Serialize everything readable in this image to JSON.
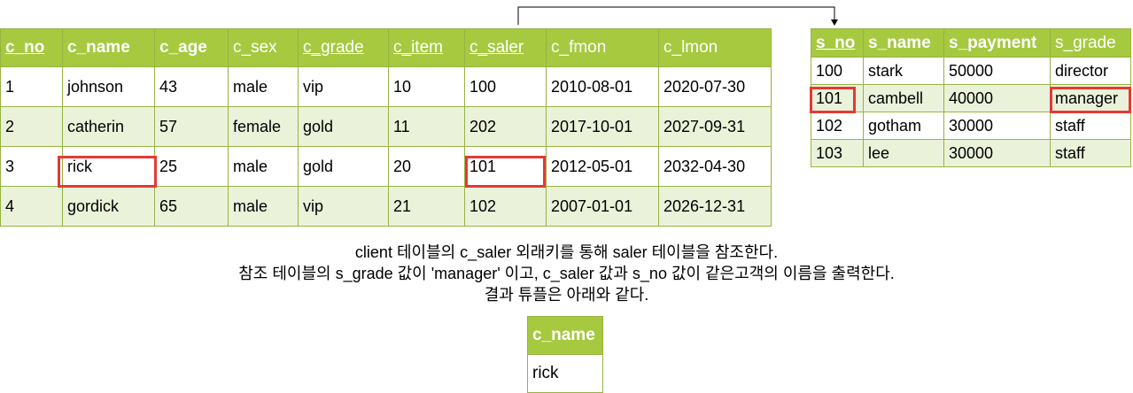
{
  "client_table": {
    "columns": [
      {
        "label": "c_no",
        "bold": true,
        "underline": true
      },
      {
        "label": "c_name",
        "bold": true,
        "underline": false
      },
      {
        "label": "c_age",
        "bold": true,
        "underline": false
      },
      {
        "label": "c_sex",
        "bold": false,
        "underline": false
      },
      {
        "label": "c_grade",
        "bold": false,
        "underline": true
      },
      {
        "label": "c_item",
        "bold": false,
        "underline": true
      },
      {
        "label": "c_saler",
        "bold": false,
        "underline": true
      },
      {
        "label": "c_fmon",
        "bold": false,
        "underline": false
      },
      {
        "label": "c_lmon",
        "bold": false,
        "underline": false
      }
    ],
    "rows": [
      [
        "1",
        "johnson",
        "43",
        "male",
        "vip",
        "10",
        "100",
        "2010-08-01",
        "2020-07-30"
      ],
      [
        "2",
        "catherin",
        "57",
        "female",
        "gold",
        "11",
        "202",
        "2017-10-01",
        "2027-09-31"
      ],
      [
        "3",
        "rick",
        "25",
        "male",
        "gold",
        "20",
        "101",
        "2012-05-01",
        "2032-04-30"
      ],
      [
        "4",
        "gordick",
        "65",
        "male",
        "vip",
        "21",
        "102",
        "2007-01-01",
        "2026-12-31"
      ]
    ]
  },
  "saler_table": {
    "columns": [
      {
        "label": "s_no",
        "bold": true,
        "underline": true
      },
      {
        "label": "s_name",
        "bold": true,
        "underline": false
      },
      {
        "label": "s_payment",
        "bold": true,
        "underline": false
      },
      {
        "label": "s_grade",
        "bold": false,
        "underline": false
      }
    ],
    "rows": [
      [
        "100",
        "stark",
        "50000",
        "director"
      ],
      [
        "101",
        "cambell",
        "40000",
        "manager"
      ],
      [
        "102",
        "gotham",
        "30000",
        "staff"
      ],
      [
        "103",
        "lee",
        "30000",
        "staff"
      ]
    ]
  },
  "description": [
    "client 테이블의 c_saler 외래키를 통해 saler 테이블을 참조한다.",
    "참조 테이블의 s_grade 값이 'manager' 이고, c_saler 값과 s_no 값이 같은고객의 이름을 출력한다.",
    "결과 튜플은 아래와 같다."
  ],
  "result_table": {
    "header": "c_name",
    "value": "rick"
  },
  "colors": {
    "header_bg": "#a6c940",
    "row_alt_bg": "#eaf2da",
    "border": "#97b343",
    "highlight": "#e53935"
  }
}
